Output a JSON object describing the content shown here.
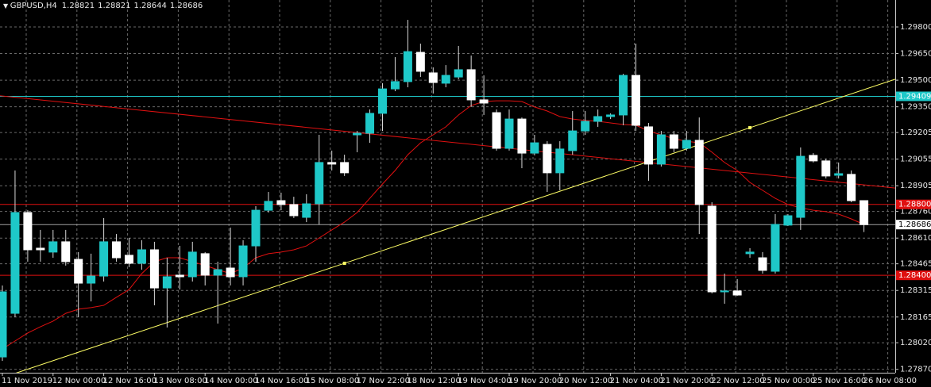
{
  "chart_data": {
    "type": "candlestick",
    "title": "GBPUSD,H4",
    "up_color": "#1ec8c8",
    "down_color": "#ffffff",
    "wick_color": "#d8d8d8",
    "grid": true,
    "categories": [
      "11 Nov 2019",
      null,
      null,
      null,
      "12 Nov 00:00",
      null,
      null,
      null,
      "12 Nov 16:00",
      null,
      null,
      null,
      "13 Nov 08:00",
      null,
      null,
      null,
      "14 Nov 00:00",
      null,
      null,
      null,
      "14 Nov 16:00",
      null,
      null,
      null,
      "15 Nov 08:00",
      null,
      null,
      null,
      "17 Nov 22:00",
      null,
      null,
      null,
      "18 Nov 12:00",
      null,
      null,
      null,
      "19 Nov 04:00",
      null,
      null,
      null,
      "19 Nov 20:00",
      null,
      null,
      null,
      "20 Nov 12:00",
      null,
      null,
      null,
      "21 Nov 04:00",
      null,
      null,
      null,
      "21 Nov 20:00",
      null,
      null,
      null,
      "22 Nov 12:00",
      null,
      null,
      null,
      "25 Nov 00:00",
      null,
      null,
      null,
      "25 Nov 16:00",
      null,
      null,
      null,
      "26 Nov 08:00"
    ],
    "open": [
      1.2794,
      1.28186,
      1.28754,
      1.28553,
      1.28531,
      1.28589,
      1.2849,
      1.28356,
      1.28396,
      1.28589,
      1.28513,
      1.28468,
      1.28544,
      1.28329,
      1.28401,
      1.28392,
      1.28522,
      1.28401,
      1.28441,
      1.28392,
      1.28566,
      1.28767,
      1.28821,
      1.28799,
      1.28727,
      1.28803,
      1.29036,
      1.29036,
      1.29192,
      1.29201,
      1.29313,
      1.29451,
      1.29492,
      1.29657,
      1.29541,
      1.29483,
      1.29518,
      1.29559,
      1.29389,
      1.29317,
      1.29116,
      1.29281,
      1.29089,
      1.29138,
      1.28978,
      1.29103,
      1.29214,
      1.29268,
      1.29295,
      1.29304,
      1.29527,
      1.29237,
      1.29027,
      1.29192,
      1.29116,
      1.29161,
      1.2879,
      1.28307,
      1.28312,
      1.28522,
      1.28499,
      1.28423,
      1.28683,
      1.28727,
      1.29076,
      1.29045,
      1.28964,
      1.28969,
      1.28821
    ],
    "high": [
      1.28343,
      1.28991,
      1.28767,
      1.28656,
      1.28656,
      1.28656,
      1.28531,
      1.28522,
      1.28723,
      1.28633,
      1.28611,
      1.28598,
      1.28589,
      1.28499,
      1.28566,
      1.28589,
      1.28531,
      1.28477,
      1.28669,
      1.28598,
      1.2879,
      1.2887,
      1.28866,
      1.28843,
      1.28857,
      1.29192,
      1.29103,
      1.2908,
      1.29214,
      1.29335,
      1.29483,
      1.2963,
      1.2984,
      1.29706,
      1.29572,
      1.29585,
      1.29693,
      1.29639,
      1.29527,
      1.29335,
      1.29335,
      1.2929,
      1.29192,
      1.29156,
      1.29156,
      1.29326,
      1.29326,
      1.29335,
      1.29313,
      1.29536,
      1.29706,
      1.29259,
      1.29214,
      1.29214,
      1.29214,
      1.2929,
      1.28812,
      1.2841,
      1.28379,
      1.28553,
      1.28531,
      1.28745,
      1.28745,
      1.29121,
      1.29089,
      1.29058,
      1.29036,
      1.28991,
      1.28821
    ],
    "low": [
      1.27918,
      1.28164,
      1.28477,
      1.28477,
      1.28499,
      1.28455,
      1.28164,
      1.28253,
      1.28365,
      1.28477,
      1.28446,
      1.28432,
      1.28231,
      1.28106,
      1.2832,
      1.28365,
      1.28343,
      1.28128,
      1.28343,
      1.28343,
      1.28477,
      1.28754,
      1.28767,
      1.28723,
      1.287,
      1.28687,
      1.28991,
      1.2896,
      1.29094,
      1.29147,
      1.29214,
      1.29438,
      1.2946,
      1.29518,
      1.29425,
      1.2946,
      1.29505,
      1.29349,
      1.29304,
      1.29103,
      1.29103,
      1.29004,
      1.29076,
      1.2887,
      1.28879,
      1.2908,
      1.29192,
      1.29237,
      1.29281,
      1.29246,
      1.29214,
      1.28933,
      1.29013,
      1.29094,
      1.29103,
      1.28633,
      1.28298,
      1.2824,
      1.28285,
      1.28499,
      1.2841,
      1.2841,
      1.28678,
      1.28656,
      1.29036,
      1.28946,
      1.28946,
      1.28812,
      1.28644
    ],
    "close": [
      1.28307,
      1.28754,
      1.28544,
      1.28544,
      1.28589,
      1.28477,
      1.28356,
      1.28396,
      1.28589,
      1.28499,
      1.28468,
      1.28544,
      1.28329,
      1.28392,
      1.28392,
      1.28531,
      1.28401,
      1.28432,
      1.28392,
      1.28566,
      1.28767,
      1.28817,
      1.28799,
      1.28736,
      1.28803,
      1.29036,
      1.29027,
      1.28978,
      1.29201,
      1.29313,
      1.29451,
      1.29492,
      1.29661,
      1.2955,
      1.29487,
      1.29527,
      1.29559,
      1.29389,
      1.29371,
      1.29116,
      1.29281,
      1.29089,
      1.29147,
      1.28978,
      1.29112,
      1.29214,
      1.29268,
      1.29295,
      1.29304,
      1.29527,
      1.29246,
      1.29027,
      1.29192,
      1.29116,
      1.29161,
      1.28799,
      1.28307,
      1.28312,
      1.28289,
      1.28531,
      1.28428,
      1.28687,
      1.28736,
      1.29071,
      1.29045,
      1.2896,
      1.28973,
      1.28821,
      1.28686
    ],
    "ma": {
      "color": "#e01010",
      "values": [
        1.27985,
        1.2803,
        1.28075,
        1.2811,
        1.28142,
        1.28186,
        1.28209,
        1.28218,
        1.28231,
        1.28276,
        1.2832,
        1.2841,
        1.28477,
        1.28499,
        1.28499,
        1.28477,
        1.28455,
        1.28432,
        1.2841,
        1.28441,
        1.28499,
        1.28522,
        1.28531,
        1.28544,
        1.28566,
        1.28611,
        1.28656,
        1.287,
        1.28754,
        1.28834,
        1.28915,
        1.28991,
        1.2908,
        1.29147,
        1.29192,
        1.29237,
        1.29304,
        1.29357,
        1.2938,
        1.29384,
        1.29384,
        1.2938,
        1.29349,
        1.29326,
        1.29295,
        1.29281,
        1.29273,
        1.29268,
        1.29259,
        1.2925,
        1.29246,
        1.29214,
        1.29192,
        1.2917,
        1.29156,
        1.29147,
        1.29094,
        1.29036,
        1.28991,
        1.28924,
        1.28879,
        1.28834,
        1.28799,
        1.28781,
        1.28767,
        1.28759,
        1.28745,
        1.28718,
        1.28687
      ]
    },
    "trendlines": [
      {
        "color": "#ffff66",
        "points": [
          {
            "index": 27,
            "price": 1.28468
          },
          {
            "index": 59,
            "price": 1.29232
          }
        ]
      },
      {
        "color": "#e01010",
        "points": [
          {
            "index": 0,
            "price": 1.29411
          },
          {
            "index": 68,
            "price": 1.2891
          }
        ]
      }
    ],
    "hlines": [
      {
        "value": 1.29409,
        "color": "#1ec8c8"
      },
      {
        "value": 1.288,
        "label": "1.28800",
        "color": "#e01010"
      },
      {
        "value": 1.284,
        "label": "1.28400",
        "color": "#e01010"
      }
    ],
    "ylim": [
      1.27851,
      1.29952
    ],
    "yticks": [
      {
        "value": 1.298,
        "label": "1.29800"
      },
      {
        "value": 1.2965,
        "label": "1.29650"
      },
      {
        "value": 1.295,
        "label": "1.29500"
      },
      {
        "value": 1.2935,
        "label": "1.29350"
      },
      1.29205,
      1.29055,
      1.28905,
      {
        "value": 1.2876,
        "label": "1.28760"
      },
      {
        "value": 1.2861,
        "label": "1.28610"
      },
      1.28465,
      1.28315,
      1.28165,
      {
        "value": 1.2802,
        "label": "1.28020"
      },
      {
        "value": 1.2787,
        "label": "1.27870"
      }
    ]
  }
}
